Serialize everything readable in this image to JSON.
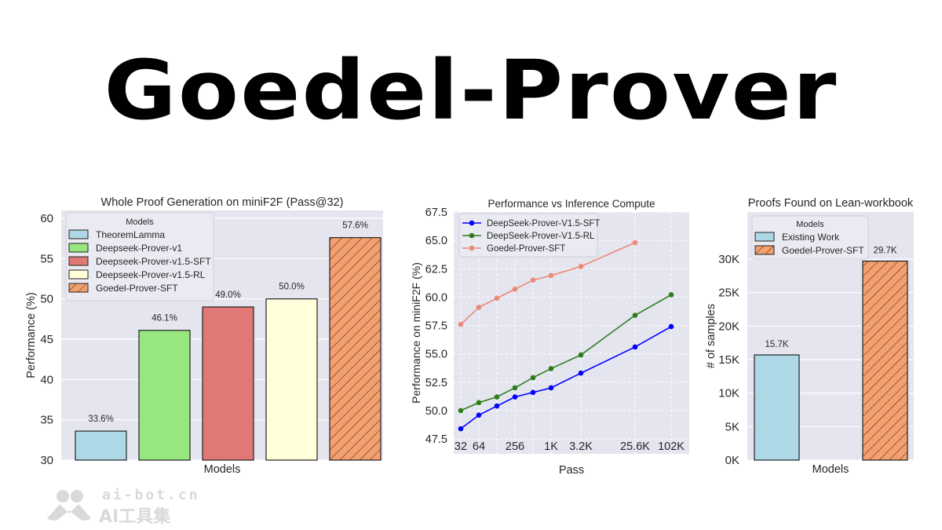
{
  "header": {
    "title": "Goedel-Prover"
  },
  "watermark": {
    "line1": "ai-bot.cn",
    "line2": "AI工具集",
    "icon": "logo-icon"
  },
  "colors": {
    "plot_bg": "#e5e5f0",
    "theoremlamma": "#add8e6",
    "deepseek_v1": "#98e67e",
    "deepseek_v15_sft": "#e07875",
    "deepseek_v15_rl": "#ffffd9",
    "goedel": "#f4a06e",
    "line_sft": "#0000ff",
    "line_rl": "#2e7d1a",
    "line_goedel": "#ec8a78"
  },
  "chart_data": [
    {
      "type": "bar",
      "title": "Whole Proof Generation on miniF2F (Pass@32)",
      "xlabel": "Models",
      "ylabel": "Performance (%)",
      "ylim": [
        30,
        60
      ],
      "yticks": [
        "30",
        "35",
        "40",
        "45",
        "50",
        "55",
        "60"
      ],
      "grid": true,
      "legend_title": "Models",
      "legend_position": "upper left",
      "categories": [
        "TheoremLamma",
        "Deepseek-Prover-v1",
        "Deepseek-Prover-v1.5-SFT",
        "Deepseek-Prover-v1.5-RL",
        "Goedel-Prover-SFT"
      ],
      "values": [
        33.6,
        46.1,
        49.0,
        50.0,
        57.6
      ],
      "labels": [
        "33.6%",
        "46.1%",
        "49.0%",
        "50.0%",
        "57.6%"
      ],
      "hatched": [
        false,
        false,
        false,
        false,
        true
      ]
    },
    {
      "type": "line",
      "title": "Performance vs Inference Compute",
      "xlabel": "Pass",
      "ylabel": "Performance on miniF2F (%)",
      "ylim": [
        47.5,
        67.5
      ],
      "yticks": [
        "47.5",
        "50.0",
        "52.5",
        "55.0",
        "57.5",
        "60.0",
        "62.5",
        "65.0",
        "67.5"
      ],
      "xticks": [
        "32",
        "64",
        "256",
        "1K",
        "3.2K",
        "25.6K",
        "102K"
      ],
      "x": [
        "32",
        "64",
        "128",
        "256",
        "512",
        "1K",
        "3.2K",
        "25.6K",
        "102K"
      ],
      "xscale": "log",
      "grid": true,
      "legend_position": "upper left",
      "series": [
        {
          "name": "DeepSeek-Prover-V1.5-SFT",
          "values": [
            48.4,
            49.6,
            50.4,
            51.2,
            51.6,
            52.0,
            53.3,
            55.6,
            57.4
          ]
        },
        {
          "name": "DeepSeek-Prover-V1.5-RL",
          "values": [
            50.0,
            50.7,
            51.2,
            52.0,
            52.9,
            53.7,
            54.9,
            58.4,
            60.2
          ]
        },
        {
          "name": "Goedel-Prover-SFT",
          "values": [
            57.6,
            59.1,
            59.9,
            60.7,
            61.5,
            61.9,
            62.7,
            64.8,
            null
          ]
        }
      ]
    },
    {
      "type": "bar",
      "title": "Proofs Found on Lean-workbook",
      "xlabel": "Models",
      "ylabel": "# of samples",
      "ylim": [
        0,
        32000
      ],
      "yticks": [
        "0K",
        "5K",
        "10K",
        "15K",
        "20K",
        "25K",
        "30K"
      ],
      "grid": true,
      "legend_title": "Models",
      "legend_position": "upper left",
      "categories": [
        "Existing Work",
        "Goedel-Prover-SFT"
      ],
      "values": [
        15700,
        29700
      ],
      "labels": [
        "15.7K",
        "29.7K"
      ],
      "hatched": [
        false,
        true
      ]
    }
  ]
}
